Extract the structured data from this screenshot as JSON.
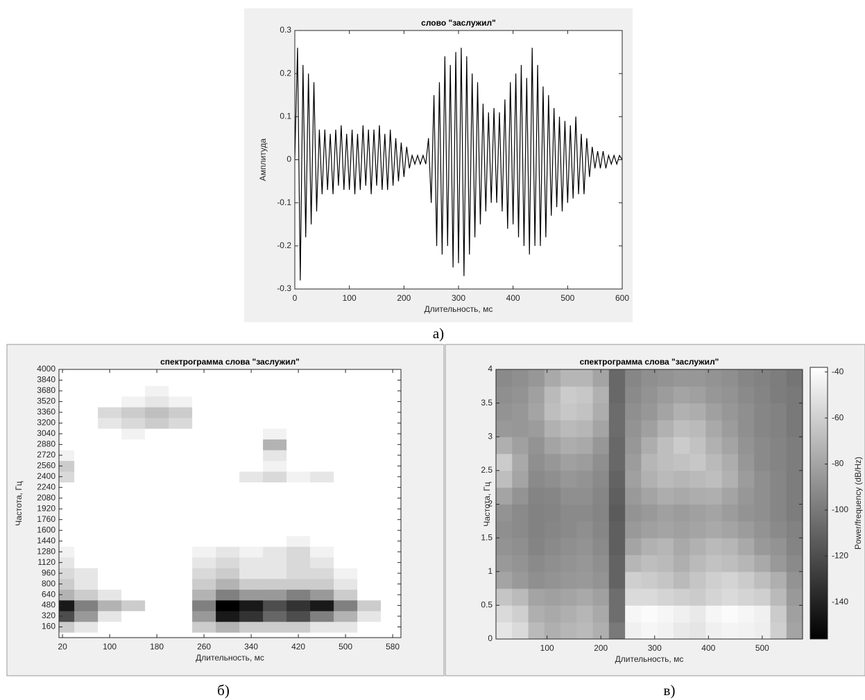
{
  "chart_data": [
    {
      "type": "line",
      "title": "слово \"заслужил\"",
      "x_label": "Длительность, мс",
      "y_label": "Амплитуда",
      "caption": "а)",
      "color": "#000000",
      "x": [
        0,
        5,
        10,
        15,
        20,
        25,
        30,
        35,
        40,
        45,
        50,
        55,
        60,
        65,
        70,
        75,
        80,
        85,
        90,
        95,
        100,
        105,
        110,
        115,
        120,
        125,
        130,
        135,
        140,
        145,
        150,
        155,
        160,
        165,
        170,
        175,
        180,
        185,
        190,
        195,
        200,
        205,
        210,
        215,
        220,
        225,
        230,
        235,
        240,
        245,
        250,
        255,
        260,
        265,
        270,
        275,
        280,
        285,
        290,
        295,
        300,
        305,
        310,
        315,
        320,
        325,
        330,
        335,
        340,
        345,
        350,
        355,
        360,
        365,
        370,
        375,
        380,
        385,
        390,
        395,
        400,
        405,
        410,
        415,
        420,
        425,
        430,
        435,
        440,
        445,
        450,
        455,
        460,
        465,
        470,
        475,
        480,
        485,
        490,
        495,
        500,
        505,
        510,
        515,
        520,
        525,
        530,
        535,
        540,
        545,
        550,
        555,
        560,
        565,
        570,
        575,
        580,
        585,
        590,
        595,
        600
      ],
      "values": [
        0,
        0.26,
        -0.28,
        0.22,
        -0.18,
        0.2,
        -0.15,
        0.18,
        -0.12,
        0.07,
        -0.08,
        0.07,
        -0.07,
        0.06,
        -0.08,
        0.07,
        -0.06,
        0.08,
        -0.07,
        0.06,
        -0.07,
        0.07,
        -0.08,
        0.06,
        -0.07,
        0.08,
        -0.06,
        0.07,
        -0.08,
        0.07,
        -0.06,
        0.08,
        -0.07,
        0.06,
        -0.07,
        0.07,
        -0.06,
        0.05,
        -0.05,
        0.04,
        -0.04,
        0.03,
        -0.02,
        0.01,
        -0.01,
        0.01,
        -0.01,
        0.01,
        -0.01,
        0.05,
        -0.1,
        0.15,
        -0.2,
        0.18,
        -0.22,
        0.24,
        -0.2,
        0.22,
        -0.25,
        0.25,
        -0.24,
        0.26,
        -0.27,
        0.24,
        -0.22,
        0.2,
        -0.18,
        0.18,
        -0.15,
        0.13,
        -0.12,
        0.11,
        -0.1,
        0.12,
        -0.1,
        0.11,
        -0.12,
        0.14,
        -0.16,
        0.18,
        -0.15,
        0.2,
        -0.18,
        0.22,
        -0.2,
        0.19,
        -0.22,
        0.26,
        -0.2,
        0.22,
        -0.2,
        0.17,
        -0.18,
        0.15,
        -0.13,
        0.12,
        -0.11,
        0.1,
        -0.12,
        0.09,
        -0.1,
        0.08,
        -0.09,
        0.1,
        -0.08,
        0.06,
        -0.08,
        0.05,
        -0.04,
        0.03,
        -0.02,
        0.02,
        -0.02,
        0.02,
        -0.02,
        0.01,
        -0.01,
        0.01,
        -0.01,
        0.01,
        0
      ],
      "xlim": [
        0,
        600
      ],
      "xticks": [
        0,
        100,
        200,
        300,
        400,
        500,
        600
      ],
      "ylim": [
        -0.3,
        0.3
      ],
      "yticks": [
        -0.3,
        -0.2,
        -0.1,
        0,
        0.1,
        0.2,
        0.3
      ]
    },
    {
      "type": "heatmap",
      "title": "спектрограмма слова \"заслужил\"",
      "x_label": "Длительность, мс",
      "y_label": "Частота, Гц",
      "caption": "б)",
      "colormap": "gray_r",
      "clim": [
        0,
        1
      ],
      "x": [
        20,
        60,
        100,
        140,
        180,
        220,
        260,
        300,
        340,
        380,
        420,
        460,
        500,
        540,
        580
      ],
      "y": [
        160,
        320,
        480,
        640,
        800,
        960,
        1120,
        1280,
        1440,
        1600,
        1760,
        1920,
        2080,
        2240,
        2400,
        2560,
        2720,
        2880,
        3040,
        3200,
        3360,
        3520,
        3680,
        3840,
        4000
      ],
      "z": [
        [
          0.2,
          0.1,
          0,
          0,
          0,
          0,
          0.2,
          0.3,
          0.2,
          0.2,
          0.2,
          0.1,
          0.1,
          0,
          0
        ],
        [
          0.7,
          0.4,
          0.1,
          0,
          0,
          0,
          0.4,
          0.9,
          0.8,
          0.6,
          0.7,
          0.5,
          0.3,
          0.1,
          0
        ],
        [
          0.9,
          0.5,
          0.3,
          0.2,
          0,
          0,
          0.5,
          1,
          0.9,
          0.7,
          0.8,
          0.9,
          0.5,
          0.2,
          0
        ],
        [
          0.3,
          0.2,
          0.1,
          0,
          0,
          0,
          0.3,
          0.5,
          0.4,
          0.4,
          0.5,
          0.4,
          0.2,
          0,
          0
        ],
        [
          0.2,
          0.1,
          0,
          0,
          0,
          0,
          0.2,
          0.3,
          0.2,
          0.2,
          0.2,
          0.2,
          0.1,
          0,
          0
        ],
        [
          0.15,
          0.1,
          0,
          0,
          0,
          0,
          0.15,
          0.2,
          0.1,
          0.1,
          0.15,
          0.15,
          0.05,
          0,
          0
        ],
        [
          0.1,
          0,
          0,
          0,
          0,
          0,
          0.1,
          0.15,
          0.1,
          0.1,
          0.15,
          0.1,
          0,
          0,
          0
        ],
        [
          0.05,
          0,
          0,
          0,
          0,
          0,
          0.05,
          0.1,
          0.05,
          0.1,
          0.15,
          0.05,
          0,
          0,
          0
        ],
        [
          0,
          0,
          0,
          0,
          0,
          0,
          0,
          0,
          0,
          0,
          0.05,
          0,
          0,
          0,
          0
        ],
        [
          0,
          0,
          0,
          0,
          0,
          0,
          0,
          0,
          0,
          0,
          0,
          0,
          0,
          0,
          0
        ],
        [
          0,
          0,
          0,
          0,
          0,
          0,
          0,
          0,
          0,
          0,
          0,
          0,
          0,
          0,
          0
        ],
        [
          0,
          0,
          0,
          0,
          0,
          0,
          0,
          0,
          0,
          0,
          0,
          0,
          0,
          0,
          0
        ],
        [
          0,
          0,
          0,
          0,
          0,
          0,
          0,
          0,
          0,
          0,
          0,
          0,
          0,
          0,
          0
        ],
        [
          0,
          0,
          0,
          0,
          0,
          0,
          0,
          0,
          0,
          0,
          0,
          0,
          0,
          0,
          0
        ],
        [
          0.15,
          0,
          0,
          0,
          0,
          0,
          0,
          0,
          0.1,
          0.15,
          0.05,
          0.1,
          0,
          0,
          0
        ],
        [
          0.2,
          0,
          0,
          0,
          0,
          0,
          0,
          0,
          0,
          0.05,
          0,
          0,
          0,
          0,
          0
        ],
        [
          0.05,
          0,
          0,
          0,
          0,
          0,
          0,
          0,
          0,
          0.1,
          0,
          0,
          0,
          0,
          0
        ],
        [
          0,
          0,
          0,
          0,
          0,
          0,
          0,
          0,
          0,
          0.3,
          0,
          0,
          0,
          0,
          0
        ],
        [
          0,
          0,
          0,
          0.05,
          0,
          0,
          0,
          0,
          0,
          0.05,
          0,
          0,
          0,
          0,
          0
        ],
        [
          0,
          0,
          0.1,
          0.15,
          0.2,
          0.15,
          0,
          0,
          0,
          0,
          0,
          0,
          0,
          0,
          0
        ],
        [
          0,
          0,
          0.15,
          0.2,
          0.25,
          0.2,
          0,
          0,
          0,
          0,
          0,
          0,
          0,
          0,
          0
        ],
        [
          0,
          0,
          0,
          0.05,
          0.1,
          0.05,
          0,
          0,
          0,
          0,
          0,
          0,
          0,
          0,
          0
        ],
        [
          0,
          0,
          0,
          0,
          0.05,
          0,
          0,
          0,
          0,
          0,
          0,
          0,
          0,
          0,
          0
        ],
        [
          0,
          0,
          0,
          0,
          0,
          0,
          0,
          0,
          0,
          0,
          0,
          0,
          0,
          0,
          0
        ],
        [
          0,
          0,
          0,
          0,
          0,
          0,
          0,
          0,
          0,
          0,
          0,
          0,
          0,
          0,
          0
        ]
      ],
      "xlim": [
        14,
        594
      ],
      "xticks": [
        20,
        100,
        180,
        260,
        340,
        420,
        500,
        580
      ],
      "ylim": [
        0,
        4000
      ],
      "yticks": [
        160,
        320,
        480,
        640,
        800,
        960,
        1120,
        1280,
        1440,
        1600,
        1760,
        1920,
        2080,
        2240,
        2400,
        2560,
        2720,
        2880,
        3040,
        3200,
        3360,
        3520,
        3680,
        3840,
        4000
      ]
    },
    {
      "type": "heatmap",
      "title": "спектрограмма слова \"заслужил\"",
      "x_label": "Длительность, мс",
      "y_label": "Частота, Гц",
      "caption": "в)",
      "colormap": "gray",
      "clim": [
        -156,
        -38
      ],
      "colorbar": {
        "label": "Power/frequency (dB/Hz)",
        "ticks": [
          -40,
          -60,
          -80,
          -100,
          -120,
          -140
        ]
      },
      "x": [
        20,
        50,
        80,
        110,
        140,
        170,
        200,
        230,
        260,
        290,
        320,
        350,
        380,
        410,
        440,
        470,
        500,
        530,
        560
      ],
      "y": [
        0.125,
        0.375,
        0.625,
        0.875,
        1.125,
        1.375,
        1.625,
        1.875,
        2.125,
        2.375,
        2.625,
        2.875,
        3.125,
        3.375,
        3.625,
        3.875
      ],
      "z": [
        [
          -50,
          -55,
          -70,
          -75,
          -72,
          -70,
          -75,
          -100,
          -45,
          -42,
          -44,
          -48,
          -50,
          -45,
          -43,
          -44,
          -46,
          -60,
          -80
        ],
        [
          -55,
          -60,
          -75,
          -78,
          -75,
          -72,
          -78,
          -105,
          -42,
          -40,
          -42,
          -45,
          -48,
          -42,
          -40,
          -42,
          -45,
          -62,
          -82
        ],
        [
          -65,
          -70,
          -80,
          -82,
          -80,
          -78,
          -82,
          -105,
          -55,
          -55,
          -58,
          -60,
          -62,
          -58,
          -55,
          -58,
          -60,
          -70,
          -85
        ],
        [
          -80,
          -85,
          -90,
          -88,
          -86,
          -85,
          -88,
          -110,
          -60,
          -62,
          -65,
          -70,
          -65,
          -60,
          -58,
          -62,
          -68,
          -75,
          -88
        ],
        [
          -85,
          -88,
          -92,
          -90,
          -88,
          -86,
          -90,
          -110,
          -72,
          -68,
          -70,
          -75,
          -70,
          -66,
          -68,
          -72,
          -78,
          -85,
          -92
        ],
        [
          -88,
          -90,
          -95,
          -92,
          -90,
          -88,
          -92,
          -112,
          -80,
          -74,
          -72,
          -78,
          -74,
          -70,
          -72,
          -78,
          -85,
          -88,
          -95
        ],
        [
          -90,
          -92,
          -96,
          -94,
          -92,
          -90,
          -94,
          -112,
          -85,
          -82,
          -80,
          -82,
          -80,
          -78,
          -80,
          -84,
          -88,
          -92,
          -96
        ],
        [
          -88,
          -92,
          -96,
          -95,
          -92,
          -92,
          -95,
          -114,
          -88,
          -85,
          -82,
          -84,
          -82,
          -80,
          -84,
          -88,
          -90,
          -94,
          -98
        ],
        [
          -80,
          -88,
          -95,
          -94,
          -90,
          -90,
          -94,
          -112,
          -85,
          -80,
          -76,
          -78,
          -76,
          -75,
          -80,
          -86,
          -90,
          -94,
          -98
        ],
        [
          -68,
          -80,
          -92,
          -90,
          -86,
          -88,
          -92,
          -110,
          -82,
          -74,
          -70,
          -72,
          -70,
          -68,
          -74,
          -84,
          -90,
          -94,
          -98
        ],
        [
          -62,
          -78,
          -90,
          -86,
          -82,
          -84,
          -90,
          -108,
          -84,
          -72,
          -68,
          -66,
          -64,
          -70,
          -76,
          -86,
          -92,
          -95,
          -98
        ],
        [
          -75,
          -82,
          -88,
          -80,
          -76,
          -78,
          -86,
          -108,
          -86,
          -76,
          -68,
          -62,
          -66,
          -74,
          -80,
          -88,
          -92,
          -95,
          -98
        ],
        [
          -85,
          -86,
          -84,
          -74,
          -70,
          -72,
          -80,
          -106,
          -88,
          -82,
          -74,
          -68,
          -70,
          -78,
          -84,
          -90,
          -94,
          -96,
          -100
        ],
        [
          -88,
          -86,
          -80,
          -68,
          -64,
          -66,
          -76,
          -106,
          -90,
          -86,
          -80,
          -74,
          -76,
          -82,
          -86,
          -90,
          -94,
          -96,
          -100
        ],
        [
          -90,
          -88,
          -82,
          -70,
          -62,
          -64,
          -74,
          -108,
          -92,
          -88,
          -84,
          -80,
          -82,
          -86,
          -88,
          -92,
          -95,
          -98,
          -100
        ],
        [
          -92,
          -90,
          -86,
          -78,
          -72,
          -72,
          -80,
          -108,
          -94,
          -90,
          -88,
          -86,
          -86,
          -88,
          -90,
          -94,
          -96,
          -98,
          -102
        ]
      ],
      "xlim": [
        5,
        575
      ],
      "xticks": [
        100,
        200,
        300,
        400,
        500
      ],
      "ylim": [
        0,
        4
      ],
      "yticks": [
        0,
        0.5,
        1,
        1.5,
        2,
        2.5,
        3,
        3.5,
        4
      ]
    }
  ]
}
